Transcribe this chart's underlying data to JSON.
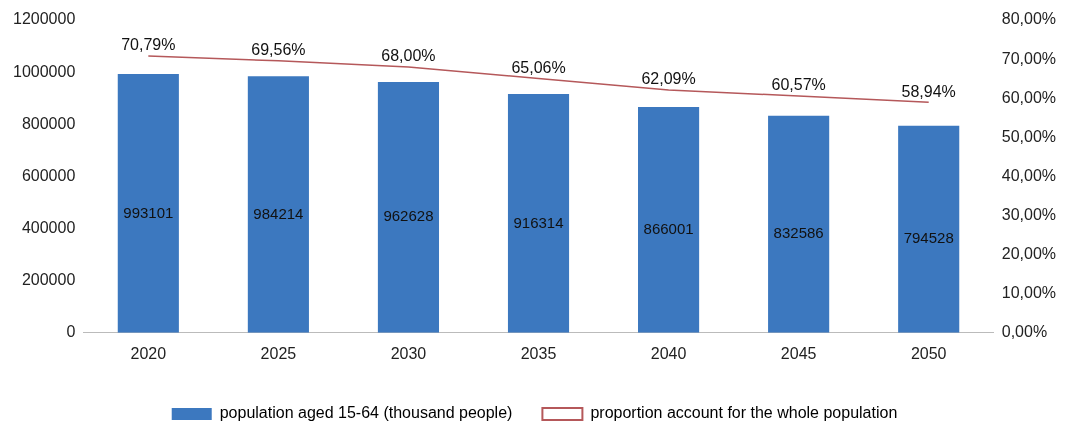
{
  "chart_data": {
    "type": "bar",
    "categories": [
      "2020",
      "2025",
      "2030",
      "2035",
      "2040",
      "2045",
      "2050"
    ],
    "series": [
      {
        "name": "population aged 15-64 (thousand people)",
        "color": "#3c78bf",
        "values": [
          993101,
          984214,
          962628,
          916314,
          866001,
          832586,
          794528
        ],
        "value_labels": [
          "993101",
          "984214",
          "962628",
          "916314",
          "866001",
          "832586",
          "794528"
        ]
      },
      {
        "name": "proportion account for the whole population",
        "type": "line",
        "axis": "y2",
        "color": "#b5585a",
        "values": [
          70.79,
          69.56,
          68.0,
          65.06,
          62.09,
          60.57,
          58.94
        ],
        "value_labels": [
          "70,79%",
          "69,56%",
          "68,00%",
          "65,06%",
          "62,09%",
          "60,57%",
          "58,94%"
        ]
      }
    ],
    "ylim": [
      0,
      1200000
    ],
    "yticks": [
      0,
      200000,
      400000,
      600000,
      800000,
      1000000,
      1200000
    ],
    "y2lim": [
      0,
      80
    ],
    "y2ticks": [
      {
        "value": 0,
        "label": "0,00%"
      },
      {
        "value": 10,
        "label": "10,00%"
      },
      {
        "value": 20,
        "label": "20,00%"
      },
      {
        "value": 30,
        "label": "30,00%"
      },
      {
        "value": 40,
        "label": "40,00%"
      },
      {
        "value": 50,
        "label": "50,00%"
      },
      {
        "value": 60,
        "label": "60,00%"
      },
      {
        "value": 70,
        "label": "70,00%"
      },
      {
        "value": 80,
        "label": "80,00%"
      }
    ],
    "grid": false,
    "legend": "bottom",
    "marker": "none",
    "line_style": "solid"
  }
}
